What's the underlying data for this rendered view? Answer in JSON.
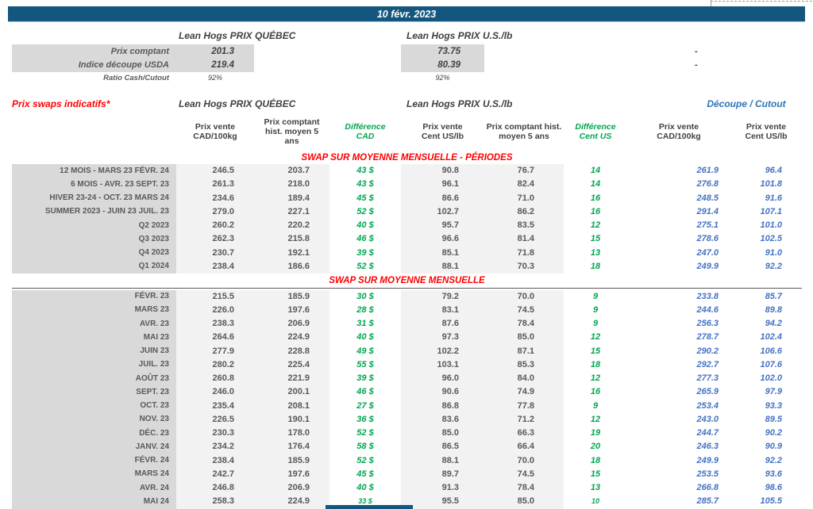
{
  "date_banner": "10 févr. 2023",
  "colors": {
    "banner_navy": "#14577E",
    "title_red": "#FF0000",
    "diff_green": "#00A651",
    "cutout_blue": "#4472C4",
    "cutout_header_blue": "#2E75B6",
    "label_gray_bg": "#D9D9D9",
    "cell_light_bg": "#F2F2F2",
    "text_gray": "#595959"
  },
  "spot": {
    "qc_header": "Lean Hogs PRIX QUÉBEC",
    "us_header": "Lean Hogs PRIX U.S./lb",
    "rows": [
      {
        "label": "Prix comptant",
        "qc": "201.3",
        "us": "73.75",
        "right": "-"
      },
      {
        "label": "Indice découpe USDA",
        "qc": "219.4",
        "us": "80.39",
        "right": "-"
      }
    ],
    "ratio_row": {
      "label": "Ratio Cash/Cutout",
      "qc": "92%",
      "us": "92%"
    }
  },
  "swaps": {
    "title": "Prix swaps indicatifs*",
    "qc_header": "Lean Hogs PRIX QUÉBEC",
    "us_header": "Lean Hogs PRIX U.S./lb",
    "cutout_header": "Découpe / Cutout",
    "columns": [
      {
        "label": "Prix vente\nCAD/100kg"
      },
      {
        "label": "Prix comptant\nhist. moyen 5\nans"
      },
      {
        "label": "Différence\nCAD"
      },
      {
        "label": "Prix vente\nCent US/lb"
      },
      {
        "label": "Prix comptant hist.\nmoyen 5 ans"
      },
      {
        "label": "Différence\nCent US"
      },
      {
        "label": "Prix vente\nCAD/100kg"
      },
      {
        "label": "Prix vente\nCent US/lb"
      }
    ],
    "periods_title": "SWAP SUR MOYENNE MENSUELLE - PÉRIODES",
    "monthly_title": "SWAP SUR MOYENNE MENSUELLE",
    "period_rows": [
      {
        "label": "12 MOIS - MARS 23 FÉVR. 24",
        "values": [
          "246.5",
          "203.7",
          "43 $",
          "90.8",
          "76.7",
          "14",
          "261.9",
          "96.4"
        ]
      },
      {
        "label": "6 MOIS - AVR. 23 SEPT. 23",
        "values": [
          "261.3",
          "218.0",
          "43 $",
          "96.1",
          "82.4",
          "14",
          "276.8",
          "101.8"
        ]
      },
      {
        "label": "HIVER 23-24 -  OCT. 23 MARS 24",
        "values": [
          "234.6",
          "189.4",
          "45 $",
          "86.6",
          "71.0",
          "16",
          "248.5",
          "91.6"
        ]
      },
      {
        "label": "SUMMER 2023 - JUIN 23 JUIL. 23",
        "values": [
          "279.0",
          "227.1",
          "52 $",
          "102.7",
          "86.2",
          "16",
          "291.4",
          "107.1"
        ]
      },
      {
        "label": "Q2 2023",
        "values": [
          "260.2",
          "220.2",
          "40 $",
          "95.7",
          "83.5",
          "12",
          "275.1",
          "101.0"
        ]
      },
      {
        "label": "Q3 2023",
        "values": [
          "262.3",
          "215.8",
          "46 $",
          "96.6",
          "81.4",
          "15",
          "278.6",
          "102.5"
        ]
      },
      {
        "label": "Q4 2023",
        "values": [
          "230.7",
          "192.1",
          "39 $",
          "85.1",
          "71.8",
          "13",
          "247.0",
          "91.0"
        ]
      },
      {
        "label": "Q1 2024",
        "values": [
          "238.4",
          "186.6",
          "52 $",
          "88.1",
          "70.3",
          "18",
          "249.9",
          "92.2"
        ]
      }
    ],
    "monthly_rows": [
      {
        "label": "FÉVR. 23",
        "values": [
          "215.5",
          "185.9",
          "30 $",
          "79.2",
          "70.0",
          "9",
          "233.8",
          "85.7"
        ]
      },
      {
        "label": "MARS 23",
        "values": [
          "226.0",
          "197.6",
          "28 $",
          "83.1",
          "74.5",
          "9",
          "244.6",
          "89.8"
        ]
      },
      {
        "label": "AVR. 23",
        "values": [
          "238.3",
          "206.9",
          "31 $",
          "87.6",
          "78.4",
          "9",
          "256.3",
          "94.2"
        ]
      },
      {
        "label": "MAI 23",
        "values": [
          "264.6",
          "224.9",
          "40 $",
          "97.3",
          "85.0",
          "12",
          "278.7",
          "102.4"
        ]
      },
      {
        "label": "JUIN 23",
        "values": [
          "277.9",
          "228.8",
          "49 $",
          "102.2",
          "87.1",
          "15",
          "290.2",
          "106.6"
        ]
      },
      {
        "label": "JUIL. 23",
        "values": [
          "280.2",
          "225.4",
          "55 $",
          "103.1",
          "85.3",
          "18",
          "292.7",
          "107.6"
        ]
      },
      {
        "label": "AOÛT 23",
        "values": [
          "260.8",
          "221.9",
          "39 $",
          "96.0",
          "84.0",
          "12",
          "277.3",
          "102.0"
        ]
      },
      {
        "label": "SEPT. 23",
        "values": [
          "246.0",
          "200.1",
          "46 $",
          "90.6",
          "74.9",
          "16",
          "265.9",
          "97.9"
        ]
      },
      {
        "label": "OCT. 23",
        "values": [
          "235.4",
          "208.1",
          "27 $",
          "86.8",
          "77.8",
          "9",
          "253.4",
          "93.3"
        ]
      },
      {
        "label": "NOV. 23",
        "values": [
          "226.5",
          "190.1",
          "36 $",
          "83.6",
          "71.2",
          "12",
          "243.0",
          "89.5"
        ]
      },
      {
        "label": "DÉC. 23",
        "values": [
          "230.3",
          "178.0",
          "52 $",
          "85.0",
          "66.3",
          "19",
          "244.7",
          "90.2"
        ]
      },
      {
        "label": "JANV. 24",
        "values": [
          "234.2",
          "176.4",
          "58 $",
          "86.5",
          "66.4",
          "20",
          "246.3",
          "90.9"
        ]
      },
      {
        "label": "FÉVR. 24",
        "values": [
          "238.4",
          "185.9",
          "52 $",
          "88.1",
          "70.0",
          "18",
          "249.9",
          "92.2"
        ]
      },
      {
        "label": "MARS 24",
        "values": [
          "242.7",
          "197.6",
          "45 $",
          "89.7",
          "74.5",
          "15",
          "253.5",
          "93.6"
        ]
      },
      {
        "label": "AVR. 24",
        "values": [
          "246.8",
          "206.9",
          "40 $",
          "91.3",
          "78.4",
          "13",
          "266.8",
          "98.6"
        ]
      },
      {
        "label": "MAI 24",
        "values": [
          "258.3",
          "224.9",
          "33 $",
          "95.5",
          "85.0",
          "10",
          "285.7",
          "105.5"
        ]
      }
    ]
  }
}
